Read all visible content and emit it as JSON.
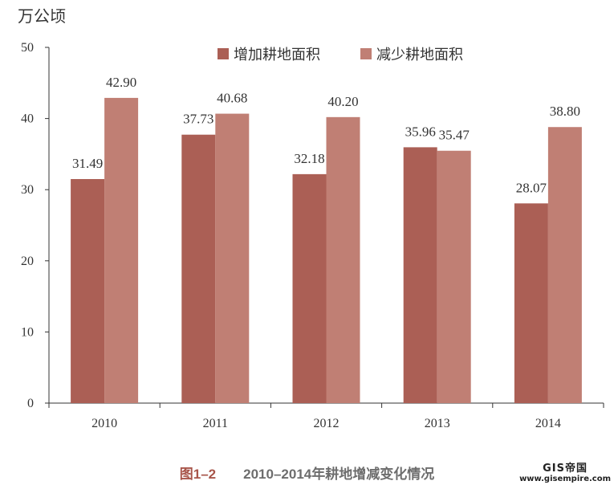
{
  "chart_data": {
    "type": "bar",
    "ylabel": "万公顷",
    "ylim": [
      0,
      50
    ],
    "yticks": [
      0,
      10,
      20,
      30,
      40,
      50
    ],
    "categories": [
      "2010",
      "2011",
      "2012",
      "2013",
      "2014"
    ],
    "series": [
      {
        "name": "增加耕地面积",
        "values": [
          31.49,
          37.73,
          32.18,
          35.96,
          28.07
        ],
        "labels": [
          "31.49",
          "37.73",
          "32.18",
          "35.96",
          "28.07"
        ],
        "color": "#ab5f55"
      },
      {
        "name": "减少耕地面积",
        "values": [
          42.9,
          40.68,
          40.2,
          35.47,
          38.8
        ],
        "labels": [
          "42.90",
          "40.68",
          "40.20",
          "35.47",
          "38.80"
        ],
        "color": "#c07f74"
      }
    ],
    "legend": "top-center",
    "grid": false
  },
  "caption": {
    "number": "图1–2",
    "text": "2010–2014年耕地增减变化情况"
  },
  "watermark": {
    "line1": "GIS帝国",
    "line2": "www.gisempire.com"
  }
}
